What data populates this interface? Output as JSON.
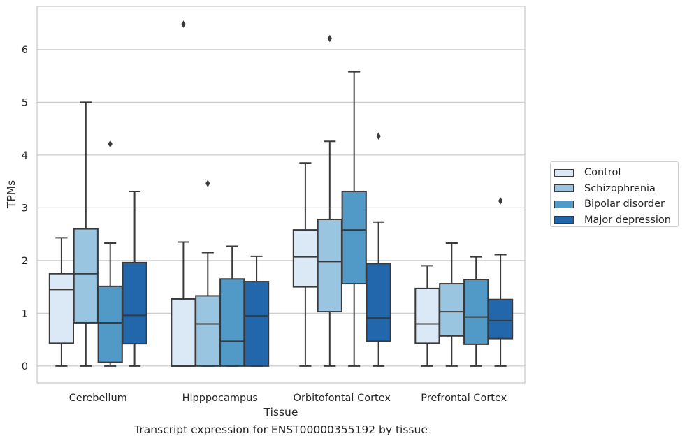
{
  "caption": "Transcript expression for ENST00000355192 by tissue",
  "chart_data": {
    "type": "boxplot",
    "title": "",
    "xlabel": "Tissue",
    "ylabel": "TPMs",
    "ylim": [
      -0.32,
      6.82
    ],
    "yticks": [
      0,
      1,
      2,
      3,
      4,
      5,
      6
    ],
    "grid": "horizontal",
    "legend_position": "right",
    "categories": [
      "Cerebellum",
      "Hipppocampus",
      "Orbitofontal Cortex",
      "Prefrontal Cortex"
    ],
    "series": [
      {
        "name": "Control",
        "color": "#dbe9f6",
        "boxes": [
          {
            "whislo": 0.0,
            "q1": 0.43,
            "med": 1.45,
            "q3": 1.75,
            "whishi": 2.43,
            "fliers": []
          },
          {
            "whislo": 0.0,
            "q1": 0.0,
            "med": 0.0,
            "q3": 1.27,
            "whishi": 2.35,
            "fliers": [
              6.48
            ]
          },
          {
            "whislo": 0.0,
            "q1": 1.5,
            "med": 2.07,
            "q3": 2.58,
            "whishi": 3.85,
            "fliers": []
          },
          {
            "whislo": 0.0,
            "q1": 0.43,
            "med": 0.8,
            "q3": 1.47,
            "whishi": 1.9,
            "fliers": []
          }
        ]
      },
      {
        "name": "Schizophrenia",
        "color": "#9ac5e0",
        "boxes": [
          {
            "whislo": 0.0,
            "q1": 0.82,
            "med": 1.75,
            "q3": 2.6,
            "whishi": 5.0,
            "fliers": []
          },
          {
            "whislo": 0.0,
            "q1": 0.0,
            "med": 0.8,
            "q3": 1.33,
            "whishi": 2.15,
            "fliers": [
              3.46
            ]
          },
          {
            "whislo": 0.0,
            "q1": 1.03,
            "med": 1.98,
            "q3": 2.78,
            "whishi": 4.26,
            "fliers": [
              6.21
            ]
          },
          {
            "whislo": 0.0,
            "q1": 0.57,
            "med": 1.03,
            "q3": 1.56,
            "whishi": 2.33,
            "fliers": []
          }
        ]
      },
      {
        "name": "Bipolar disorder",
        "color": "#5199c7",
        "boxes": [
          {
            "whislo": 0.0,
            "q1": 0.07,
            "med": 0.82,
            "q3": 1.51,
            "whishi": 2.33,
            "fliers": [
              4.21
            ]
          },
          {
            "whislo": 0.0,
            "q1": 0.0,
            "med": 0.47,
            "q3": 1.65,
            "whishi": 2.27,
            "fliers": []
          },
          {
            "whislo": 0.0,
            "q1": 1.56,
            "med": 2.58,
            "q3": 3.31,
            "whishi": 5.58,
            "fliers": []
          },
          {
            "whislo": 0.0,
            "q1": 0.41,
            "med": 0.93,
            "q3": 1.64,
            "whishi": 2.07,
            "fliers": []
          }
        ]
      },
      {
        "name": "Major depression",
        "color": "#2266ab",
        "boxes": [
          {
            "whislo": 0.0,
            "q1": 0.42,
            "med": 0.96,
            "q3": 1.96,
            "whishi": 3.31,
            "fliers": []
          },
          {
            "whislo": 0.0,
            "q1": 0.0,
            "med": 0.95,
            "q3": 1.6,
            "whishi": 2.08,
            "fliers": []
          },
          {
            "whislo": 0.0,
            "q1": 0.47,
            "med": 0.91,
            "q3": 1.94,
            "whishi": 2.73,
            "fliers": [
              4.36
            ]
          },
          {
            "whislo": 0.0,
            "q1": 0.52,
            "med": 0.86,
            "q3": 1.26,
            "whishi": 2.11,
            "fliers": [
              3.13
            ]
          }
        ]
      }
    ]
  }
}
